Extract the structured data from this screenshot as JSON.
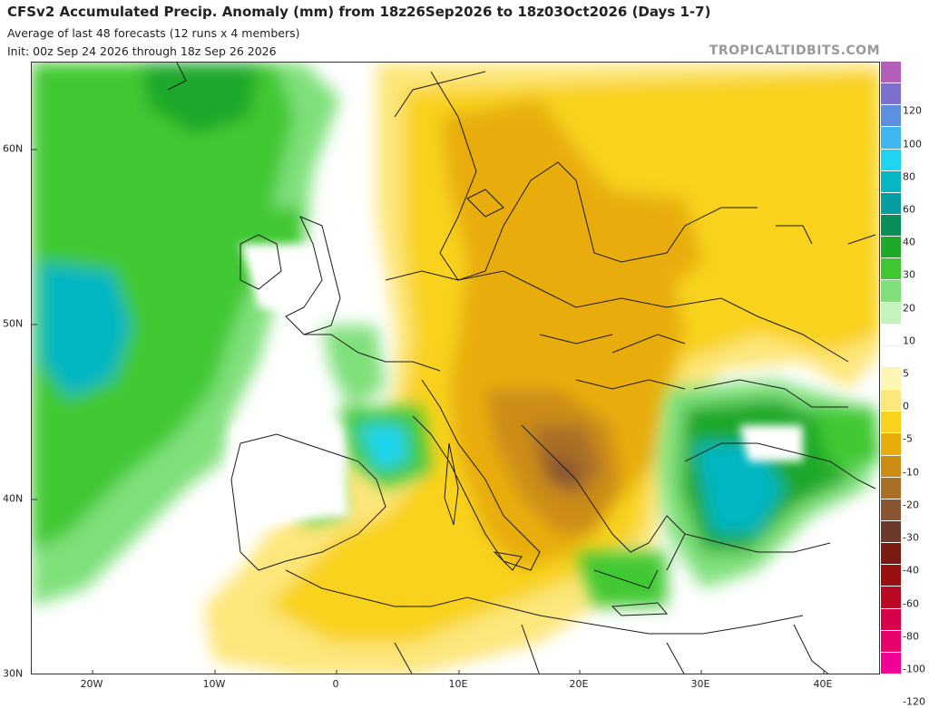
{
  "header": {
    "title": "CFSv2 Accumulated Precip. Anomaly (mm) from 18z26Sep2026 to 18z03Oct2026 (Days 1-7)",
    "subtitle1": "Average of last 48 forecasts (12 runs x 4 members)",
    "subtitle2": "Init: 00z Sep 24 2026 through 18z Sep 26 2026",
    "watermark": "TROPICALTIDBITS.COM"
  },
  "axes": {
    "lat_labels": [
      "60N",
      "50N",
      "40N",
      "30N"
    ],
    "lon_labels": [
      "20W",
      "10W",
      "0",
      "10E",
      "20E",
      "30E",
      "40E"
    ]
  },
  "colorbar": {
    "labels": [
      "120",
      "100",
      "80",
      "60",
      "40",
      "30",
      "20",
      "10",
      "5",
      "0",
      "-5",
      "-10",
      "-20",
      "-30",
      "-40",
      "-60",
      "-80",
      "-100",
      "-120"
    ],
    "colors": [
      "#b35fb8",
      "#7e70cf",
      "#5e8fdf",
      "#3fb6ef",
      "#1ed4f0",
      "#06b6c2",
      "#069ea1",
      "#0a8e5a",
      "#1fa82a",
      "#3fc832",
      "#7fe07a",
      "#c4f3bf",
      "#ffffff",
      "#ffffff",
      "#fff5b4",
      "#fde67a",
      "#f8d21c",
      "#e8ad08",
      "#cc8c12",
      "#aa6e25",
      "#8a5532",
      "#6a3b2a",
      "#7a1a10",
      "#9a1010",
      "#bb0825",
      "#d8004a",
      "#e8006b",
      "#f00095"
    ]
  },
  "colors": {
    "ocean_green": "#2fbf4a",
    "ocean_teal": "#29b3b8",
    "dry_yellow": "#f5d010",
    "dry_orange": "#e2a50c",
    "dry_brown": "#a9712a",
    "border": "#1a1a1a"
  }
}
